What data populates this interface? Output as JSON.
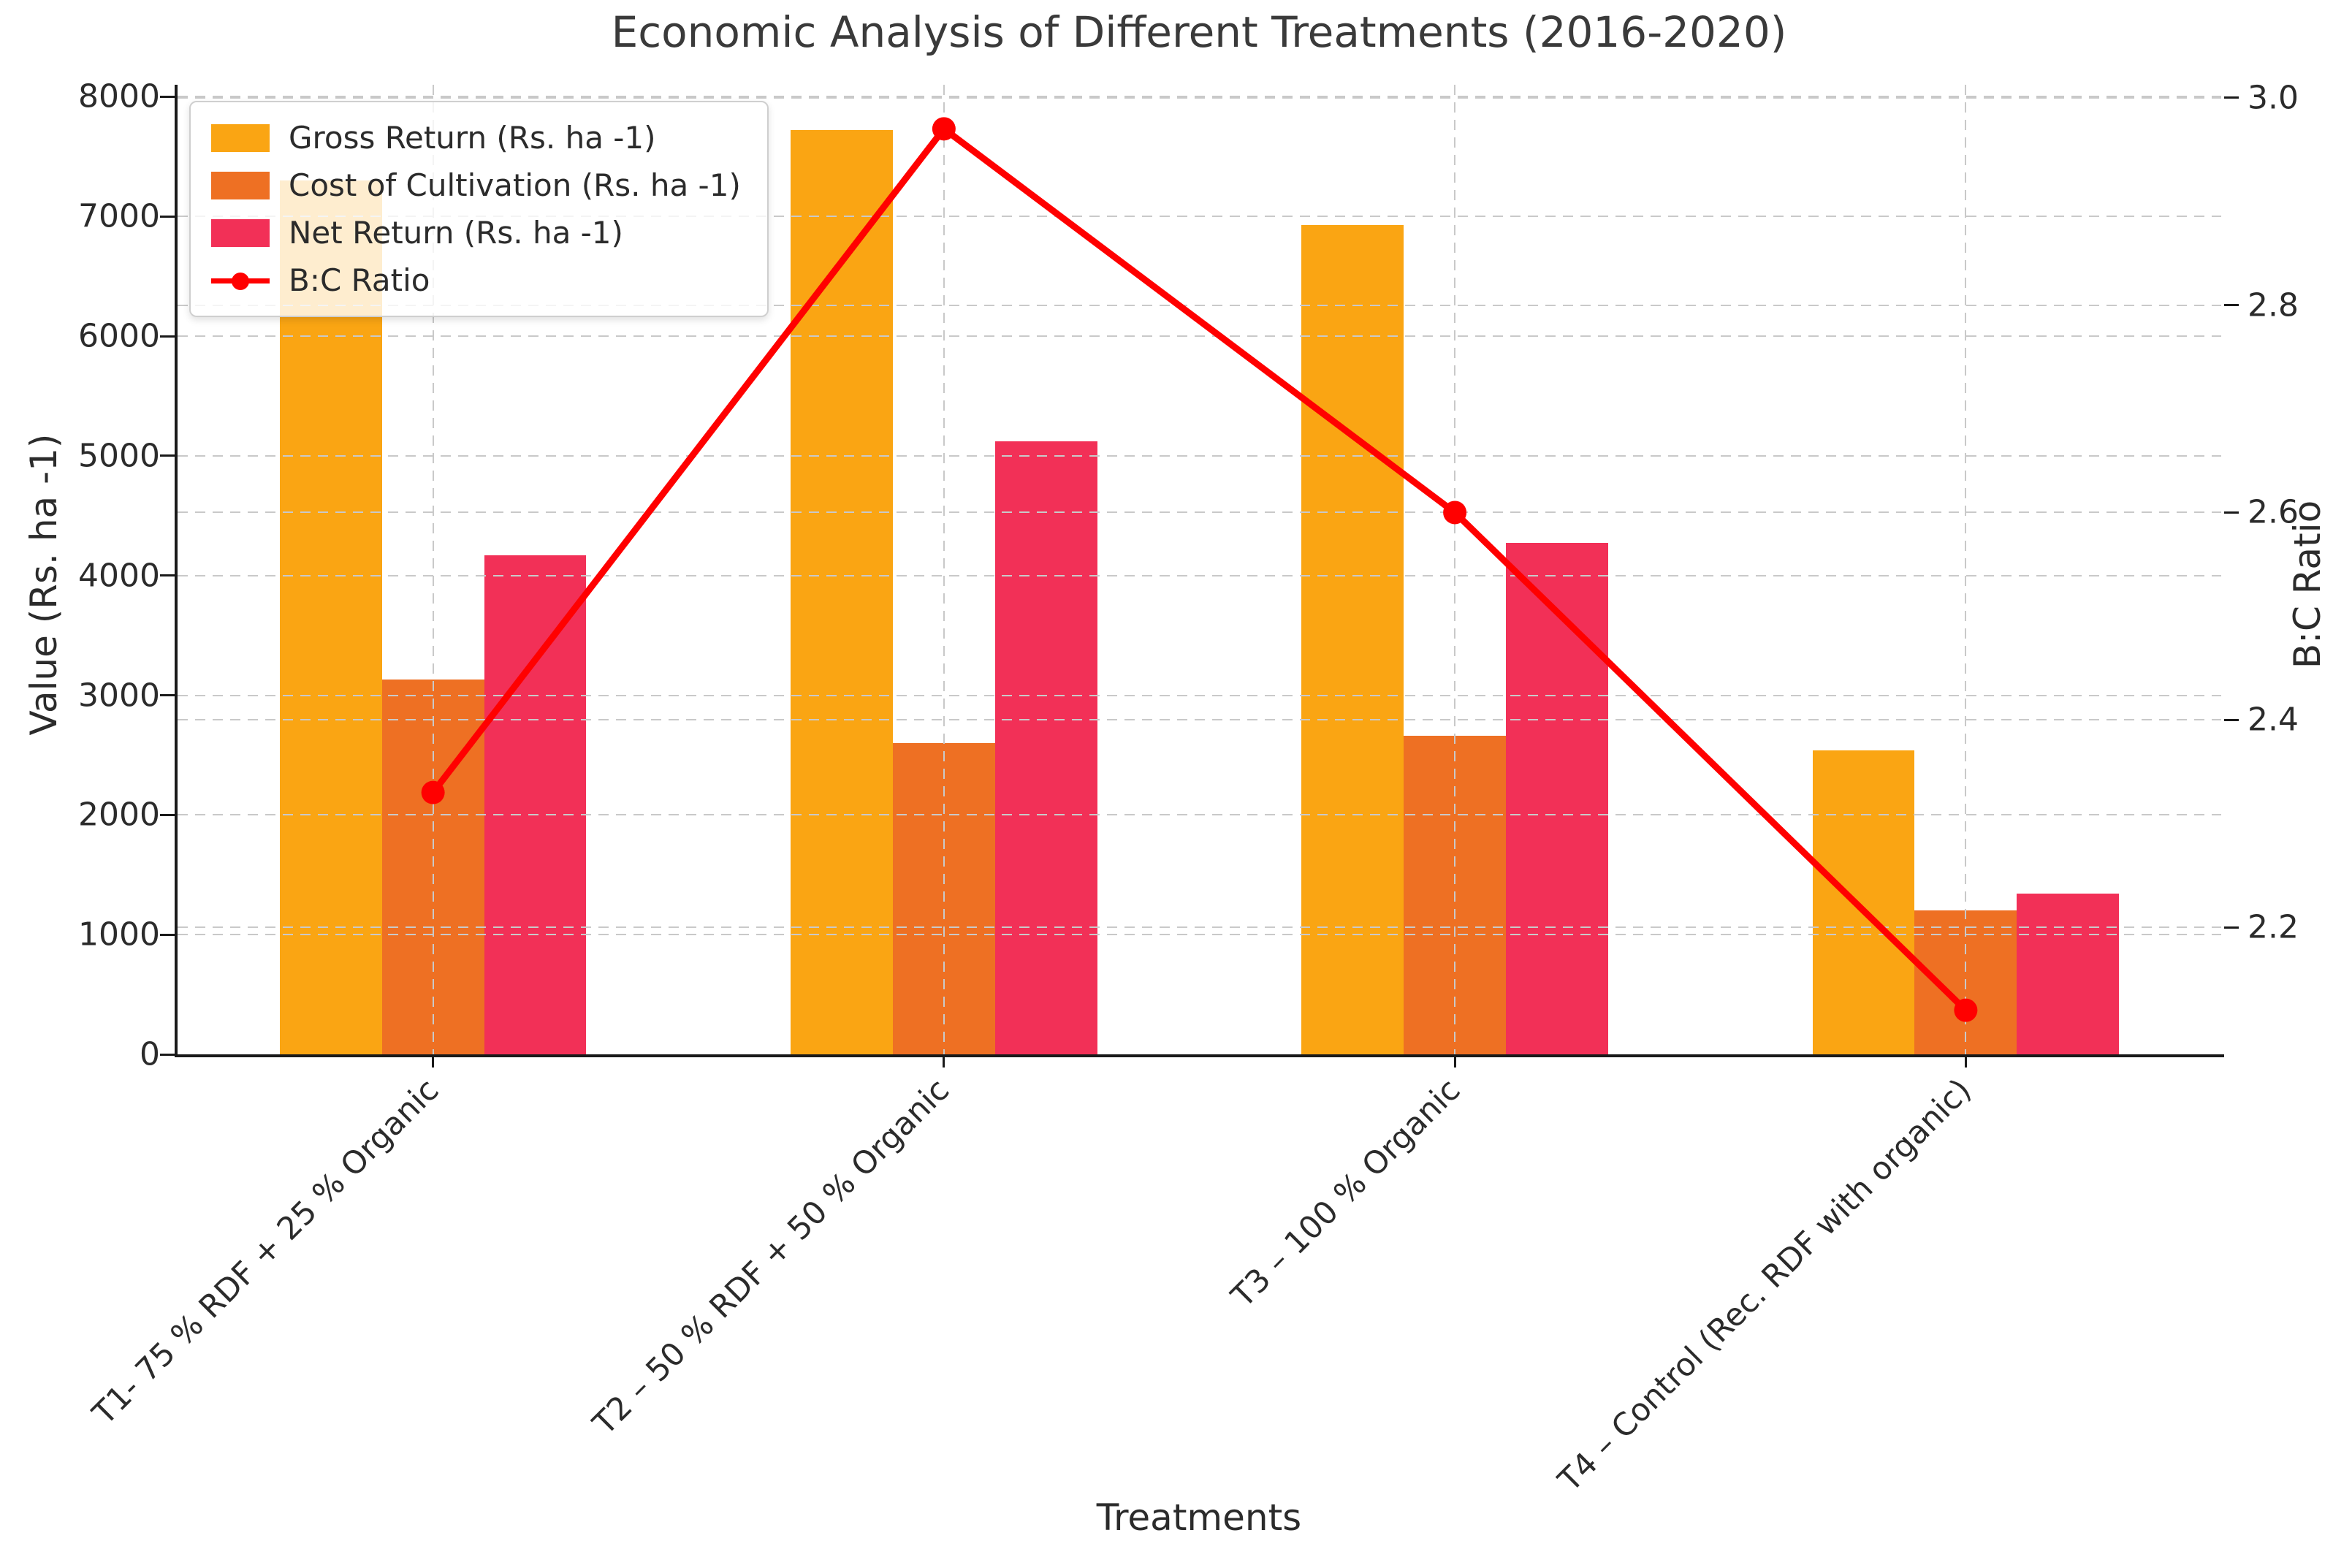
{
  "chart_data": {
    "type": "bar+line",
    "title": "Economic Analysis of Different Treatments (2016-2020)",
    "xlabel": "Treatments",
    "ylabel_left": "Value (Rs. ha -1)",
    "ylabel_right": "B:C Ratio",
    "legend_position": "upper left",
    "grid": "dashed gridlines for both y-axes plus vertical dashed lines at each category, drawn above bars",
    "categories": [
      "T1- 75 % RDF + 25 % Organic",
      "T2 – 50 % RDF + 50 % Organic",
      "T3 – 100 % Organic",
      "T4 – Control (Rec. RDF with organic)"
    ],
    "series": [
      {
        "name": "Gross Return (Rs. ha -1)",
        "type": "bar",
        "axis": "left",
        "color": "#FAA513",
        "values": [
          7300,
          7720,
          6930,
          2540
        ]
      },
      {
        "name": "Cost of Cultivation (Rs. ha -1)",
        "type": "bar",
        "axis": "left",
        "color": "#EE7023",
        "values": [
          3130,
          2600,
          2660,
          1200
        ]
      },
      {
        "name": "Net Return (Rs. ha -1)",
        "type": "bar",
        "axis": "left",
        "color": "#F23057",
        "values": [
          4170,
          5120,
          4270,
          1340
        ]
      },
      {
        "name": "B:C Ratio",
        "type": "line",
        "axis": "right",
        "color": "#FF0000",
        "values": [
          2.33,
          2.97,
          2.6,
          2.12
        ]
      }
    ],
    "axes": {
      "left": {
        "min": 0,
        "max": 8100,
        "ticks": [
          0,
          1000,
          2000,
          3000,
          4000,
          5000,
          6000,
          7000,
          8000
        ]
      },
      "right": {
        "min": 2.0775,
        "max": 3.0125,
        "ticks": [
          2.2,
          2.4,
          2.6,
          2.8,
          3.0
        ]
      }
    },
    "colors": {
      "grid": "#C9C9C9",
      "spine": "#1A1A1A",
      "text": "#2B2B2B",
      "title": "#3A3A3A",
      "background": "#FFFFFF"
    }
  }
}
